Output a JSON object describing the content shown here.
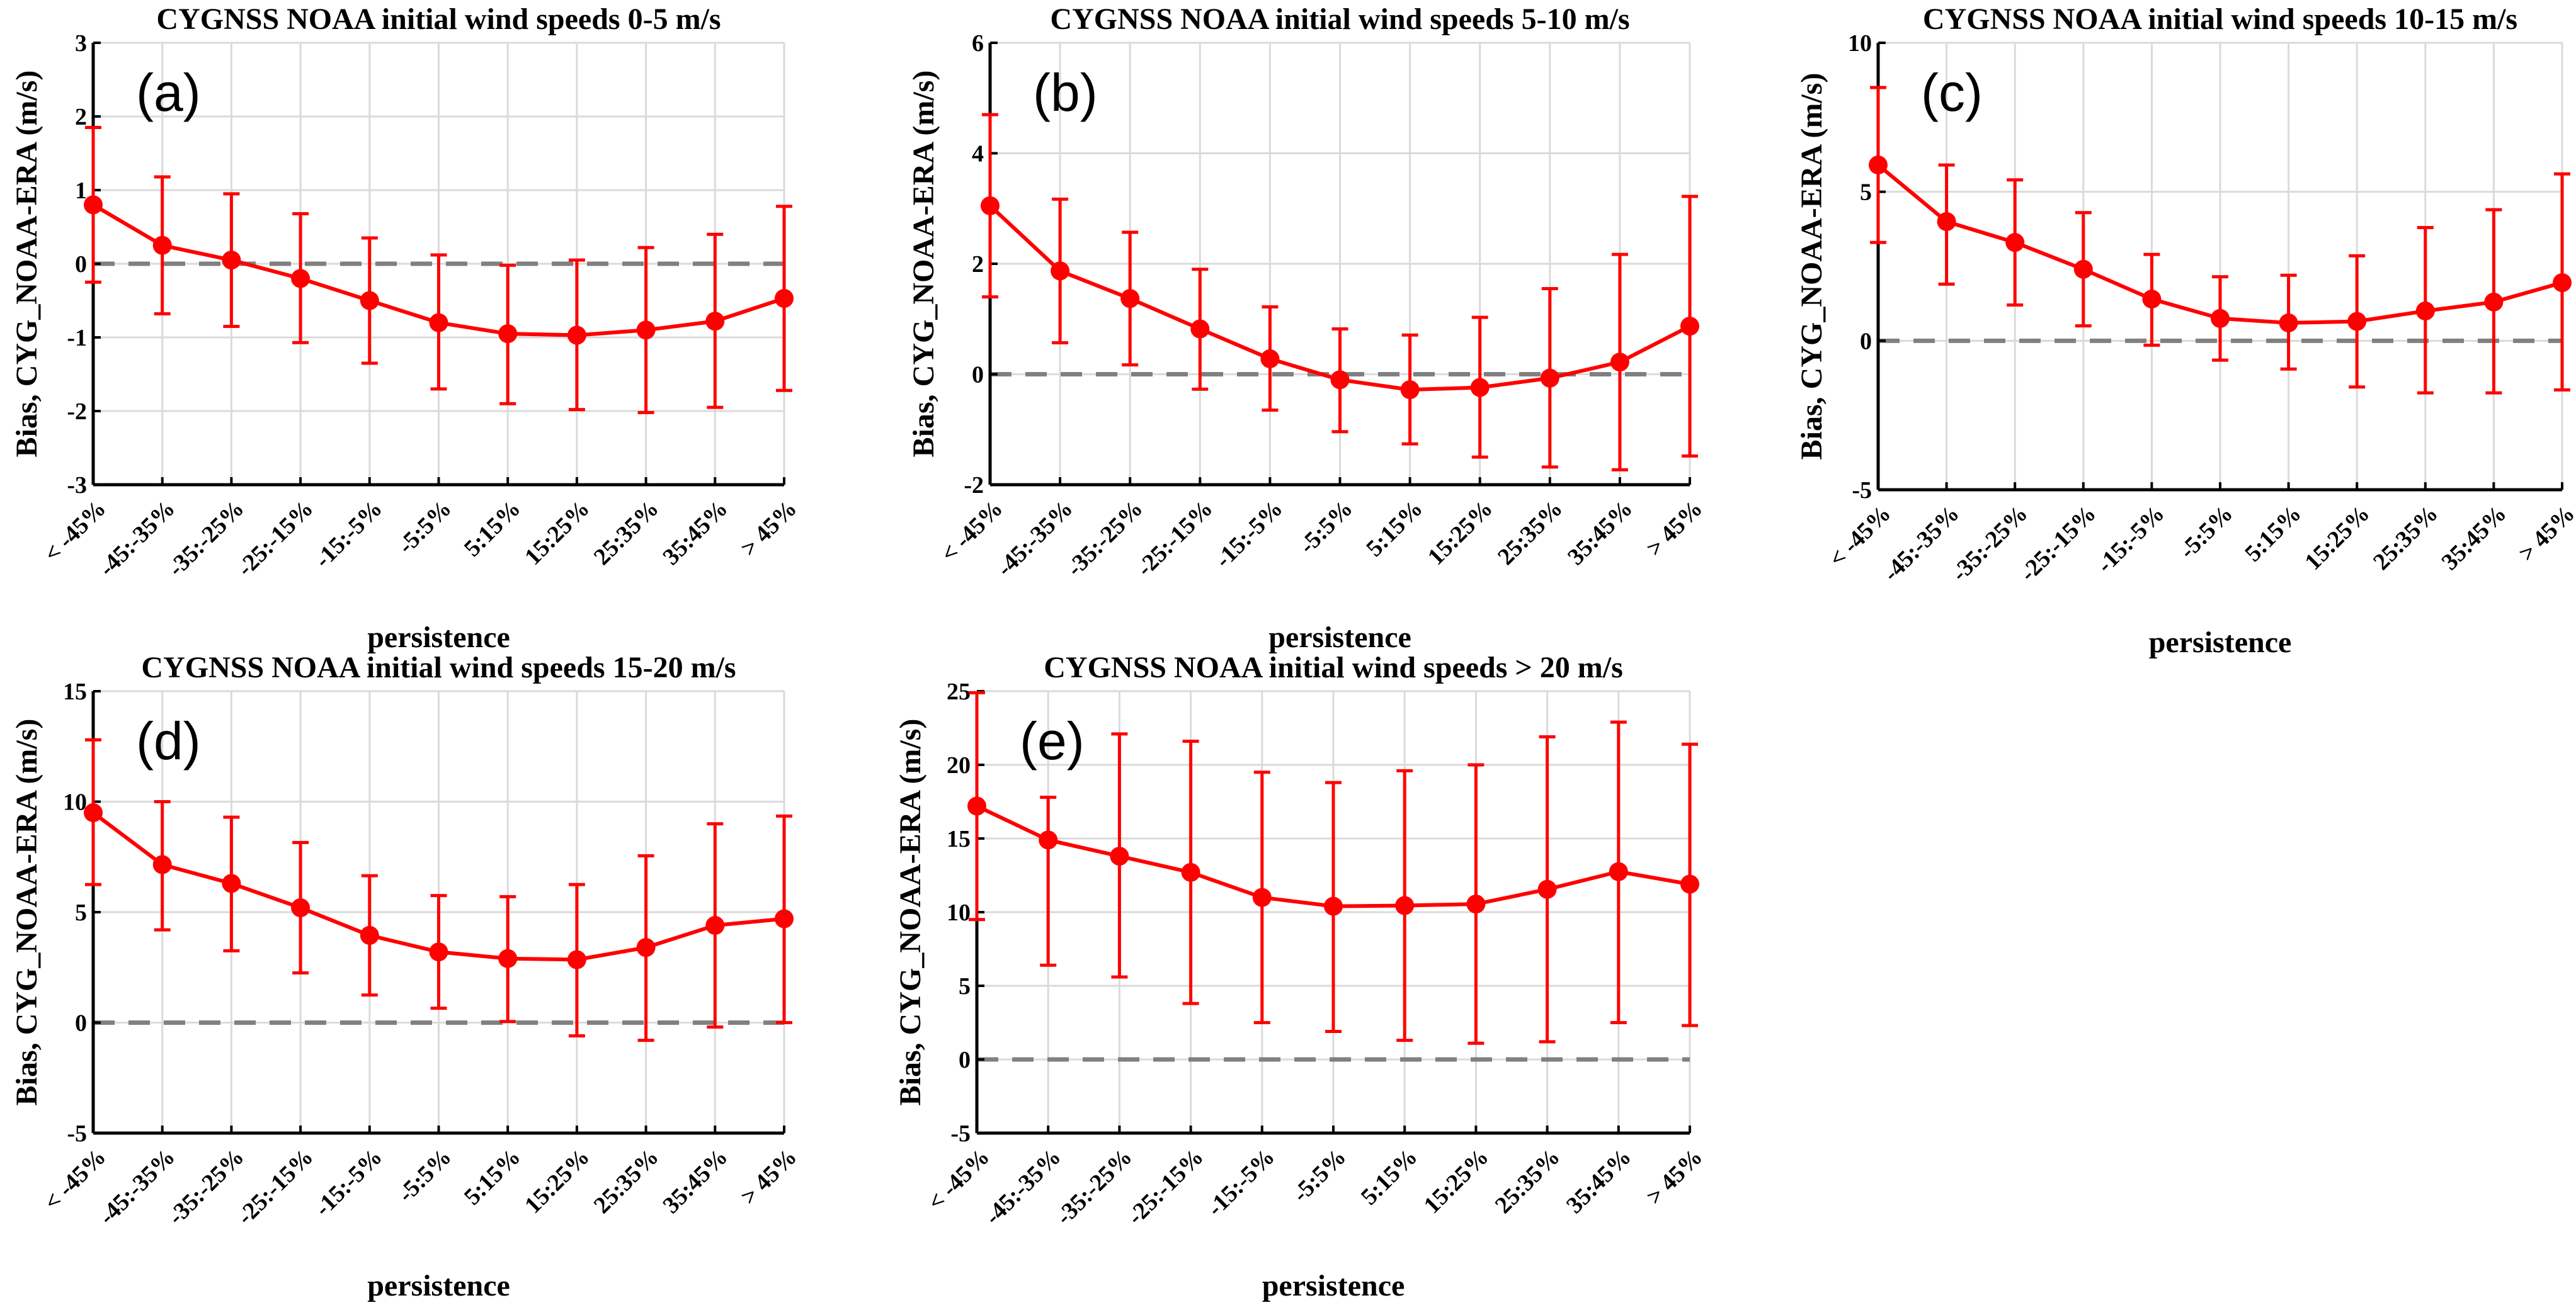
{
  "chart_data": [
    {
      "type": "line",
      "panel_label": "(a)",
      "title": "CYGNSS NOAA initial wind speeds 0-5 m/s",
      "xlabel": "persistence",
      "ylabel": "Bias, CYG_NOAA-ERA (m/s)",
      "categories": [
        "< -45%",
        "-45:-35%",
        "-35:-25%",
        "-25:-15%",
        "-15:-5%",
        "-5:5%",
        "5:15%",
        "15:25%",
        "25:35%",
        "35:45%",
        "> 45%"
      ],
      "ylim": [
        -3,
        3
      ],
      "yticks": [
        -3,
        -2,
        -1,
        0,
        1,
        2,
        3
      ],
      "values": [
        0.8,
        0.25,
        0.05,
        -0.2,
        -0.5,
        -0.8,
        -0.95,
        -0.97,
        -0.9,
        -0.78,
        -0.47
      ],
      "err_low": [
        -0.25,
        -0.68,
        -0.85,
        -1.07,
        -1.35,
        -1.7,
        -1.9,
        -1.98,
        -2.02,
        -1.95,
        -1.72
      ],
      "err_high": [
        1.85,
        1.18,
        0.95,
        0.68,
        0.35,
        0.12,
        -0.02,
        0.05,
        0.22,
        0.4,
        0.78
      ],
      "reference_line": 0,
      "color": "#ff0000",
      "reference_color": "#808080",
      "grid": true
    },
    {
      "type": "line",
      "panel_label": "(b)",
      "title": "CYGNSS NOAA initial wind speeds 5-10 m/s",
      "xlabel": "persistence",
      "ylabel": "Bias, CYG_NOAA-ERA (m/s)",
      "categories": [
        "< -45%",
        "-45:-35%",
        "-35:-25%",
        "-25:-15%",
        "-15:-5%",
        "-5:5%",
        "5:15%",
        "15:25%",
        "25:35%",
        "35:45%",
        "> 45%"
      ],
      "ylim": [
        -2,
        6
      ],
      "yticks": [
        -2,
        0,
        2,
        4,
        6
      ],
      "values": [
        3.05,
        1.87,
        1.37,
        0.82,
        0.28,
        -0.1,
        -0.28,
        -0.24,
        -0.07,
        0.22,
        0.87
      ],
      "err_low": [
        1.4,
        0.57,
        0.17,
        -0.27,
        -0.65,
        -1.04,
        -1.26,
        -1.5,
        -1.68,
        -1.73,
        -1.48
      ],
      "err_high": [
        4.7,
        3.17,
        2.57,
        1.9,
        1.22,
        0.82,
        0.71,
        1.03,
        1.55,
        2.17,
        3.22
      ],
      "reference_line": 0,
      "color": "#ff0000",
      "reference_color": "#808080",
      "grid": true
    },
    {
      "type": "line",
      "panel_label": "(c)",
      "title": "CYGNSS NOAA initial wind speeds 10-15 m/s",
      "xlabel": "persistence",
      "ylabel": "Bias, CYG_NOAA-ERA (m/s)",
      "categories": [
        "< -45%",
        "-45:-35%",
        "-35:-25%",
        "-25:-15%",
        "-15:-5%",
        "-5:5%",
        "5:15%",
        "15:25%",
        "25:35%",
        "35:45%",
        "> 45%"
      ],
      "ylim": [
        -5,
        10
      ],
      "yticks": [
        -5,
        0,
        5,
        10
      ],
      "values": [
        5.9,
        4.0,
        3.3,
        2.4,
        1.4,
        0.75,
        0.6,
        0.65,
        1.0,
        1.3,
        1.95
      ],
      "err_low": [
        3.3,
        1.9,
        1.2,
        0.5,
        -0.15,
        -0.65,
        -0.95,
        -1.55,
        -1.75,
        -1.75,
        -1.65
      ],
      "err_high": [
        8.5,
        5.9,
        5.4,
        4.3,
        2.9,
        2.15,
        2.2,
        2.85,
        3.8,
        4.4,
        5.6
      ],
      "reference_line": 0,
      "color": "#ff0000",
      "reference_color": "#808080",
      "grid": true
    },
    {
      "type": "line",
      "panel_label": "(d)",
      "title": "CYGNSS NOAA initial wind speeds 15-20 m/s",
      "xlabel": "persistence",
      "ylabel": "Bias, CYG_NOAA-ERA (m/s)",
      "categories": [
        "< -45%",
        "-45:-35%",
        "-35:-25%",
        "-25:-15%",
        "-15:-5%",
        "-5:5%",
        "5:15%",
        "15:25%",
        "25:35%",
        "35:45%",
        "> 45%"
      ],
      "ylim": [
        -5,
        15
      ],
      "yticks": [
        -5,
        0,
        5,
        10,
        15
      ],
      "values": [
        9.5,
        7.15,
        6.3,
        5.2,
        3.95,
        3.2,
        2.9,
        2.85,
        3.4,
        4.4,
        4.7
      ],
      "err_low": [
        6.25,
        4.2,
        3.25,
        2.25,
        1.25,
        0.65,
        0.05,
        -0.6,
        -0.8,
        -0.2,
        0.0
      ],
      "err_high": [
        12.8,
        10.0,
        9.3,
        8.15,
        6.65,
        5.75,
        5.7,
        6.25,
        7.55,
        9.0,
        9.35
      ],
      "reference_line": 0,
      "color": "#ff0000",
      "reference_color": "#808080",
      "grid": true
    },
    {
      "type": "line",
      "panel_label": "(e)",
      "title": "CYGNSS NOAA initial wind speeds > 20 m/s",
      "xlabel": "persistence",
      "ylabel": "Bias, CYG_NOAA-ERA (m/s)",
      "categories": [
        "< -45%",
        "-45:-35%",
        "-35:-25%",
        "-25:-15%",
        "-15:-5%",
        "-5:5%",
        "5:15%",
        "15:25%",
        "25:35%",
        "35:45%",
        "> 45%"
      ],
      "ylim": [
        -5,
        25
      ],
      "yticks": [
        -5,
        0,
        5,
        10,
        15,
        20,
        25
      ],
      "values": [
        17.2,
        14.9,
        13.8,
        12.7,
        11.0,
        10.4,
        10.45,
        10.55,
        11.55,
        12.75,
        11.9
      ],
      "err_low": [
        9.5,
        6.4,
        5.6,
        3.8,
        2.5,
        1.9,
        1.3,
        1.1,
        1.2,
        2.5,
        2.3
      ],
      "err_high": [
        24.9,
        17.8,
        22.1,
        21.6,
        19.5,
        18.8,
        19.6,
        20.0,
        21.9,
        22.9,
        21.4
      ],
      "reference_line": 0,
      "color": "#ff0000",
      "reference_color": "#808080",
      "grid": true
    }
  ]
}
